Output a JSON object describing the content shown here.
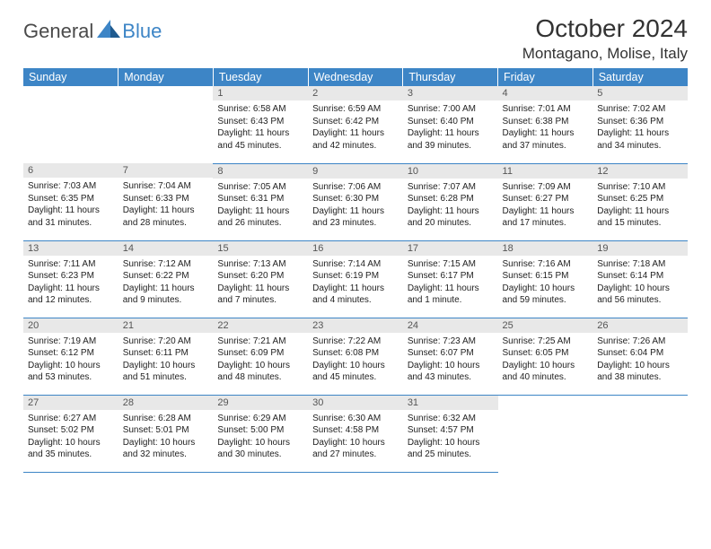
{
  "logo": {
    "text1": "General",
    "text2": "Blue"
  },
  "title": "October 2024",
  "location": "Montagano, Molise, Italy",
  "colors": {
    "header_bg": "#3d85c6",
    "header_fg": "#ffffff",
    "daynum_bg": "#e8e8e8",
    "daynum_fg": "#555555",
    "text": "#222222",
    "rule": "#3d85c6"
  },
  "weekdays": [
    "Sunday",
    "Monday",
    "Tuesday",
    "Wednesday",
    "Thursday",
    "Friday",
    "Saturday"
  ],
  "weeks": [
    [
      null,
      null,
      {
        "n": "1",
        "sr": "Sunrise: 6:58 AM",
        "ss": "Sunset: 6:43 PM",
        "d1": "Daylight: 11 hours",
        "d2": "and 45 minutes."
      },
      {
        "n": "2",
        "sr": "Sunrise: 6:59 AM",
        "ss": "Sunset: 6:42 PM",
        "d1": "Daylight: 11 hours",
        "d2": "and 42 minutes."
      },
      {
        "n": "3",
        "sr": "Sunrise: 7:00 AM",
        "ss": "Sunset: 6:40 PM",
        "d1": "Daylight: 11 hours",
        "d2": "and 39 minutes."
      },
      {
        "n": "4",
        "sr": "Sunrise: 7:01 AM",
        "ss": "Sunset: 6:38 PM",
        "d1": "Daylight: 11 hours",
        "d2": "and 37 minutes."
      },
      {
        "n": "5",
        "sr": "Sunrise: 7:02 AM",
        "ss": "Sunset: 6:36 PM",
        "d1": "Daylight: 11 hours",
        "d2": "and 34 minutes."
      }
    ],
    [
      {
        "n": "6",
        "sr": "Sunrise: 7:03 AM",
        "ss": "Sunset: 6:35 PM",
        "d1": "Daylight: 11 hours",
        "d2": "and 31 minutes."
      },
      {
        "n": "7",
        "sr": "Sunrise: 7:04 AM",
        "ss": "Sunset: 6:33 PM",
        "d1": "Daylight: 11 hours",
        "d2": "and 28 minutes."
      },
      {
        "n": "8",
        "sr": "Sunrise: 7:05 AM",
        "ss": "Sunset: 6:31 PM",
        "d1": "Daylight: 11 hours",
        "d2": "and 26 minutes."
      },
      {
        "n": "9",
        "sr": "Sunrise: 7:06 AM",
        "ss": "Sunset: 6:30 PM",
        "d1": "Daylight: 11 hours",
        "d2": "and 23 minutes."
      },
      {
        "n": "10",
        "sr": "Sunrise: 7:07 AM",
        "ss": "Sunset: 6:28 PM",
        "d1": "Daylight: 11 hours",
        "d2": "and 20 minutes."
      },
      {
        "n": "11",
        "sr": "Sunrise: 7:09 AM",
        "ss": "Sunset: 6:27 PM",
        "d1": "Daylight: 11 hours",
        "d2": "and 17 minutes."
      },
      {
        "n": "12",
        "sr": "Sunrise: 7:10 AM",
        "ss": "Sunset: 6:25 PM",
        "d1": "Daylight: 11 hours",
        "d2": "and 15 minutes."
      }
    ],
    [
      {
        "n": "13",
        "sr": "Sunrise: 7:11 AM",
        "ss": "Sunset: 6:23 PM",
        "d1": "Daylight: 11 hours",
        "d2": "and 12 minutes."
      },
      {
        "n": "14",
        "sr": "Sunrise: 7:12 AM",
        "ss": "Sunset: 6:22 PM",
        "d1": "Daylight: 11 hours",
        "d2": "and 9 minutes."
      },
      {
        "n": "15",
        "sr": "Sunrise: 7:13 AM",
        "ss": "Sunset: 6:20 PM",
        "d1": "Daylight: 11 hours",
        "d2": "and 7 minutes."
      },
      {
        "n": "16",
        "sr": "Sunrise: 7:14 AM",
        "ss": "Sunset: 6:19 PM",
        "d1": "Daylight: 11 hours",
        "d2": "and 4 minutes."
      },
      {
        "n": "17",
        "sr": "Sunrise: 7:15 AM",
        "ss": "Sunset: 6:17 PM",
        "d1": "Daylight: 11 hours",
        "d2": "and 1 minute."
      },
      {
        "n": "18",
        "sr": "Sunrise: 7:16 AM",
        "ss": "Sunset: 6:15 PM",
        "d1": "Daylight: 10 hours",
        "d2": "and 59 minutes."
      },
      {
        "n": "19",
        "sr": "Sunrise: 7:18 AM",
        "ss": "Sunset: 6:14 PM",
        "d1": "Daylight: 10 hours",
        "d2": "and 56 minutes."
      }
    ],
    [
      {
        "n": "20",
        "sr": "Sunrise: 7:19 AM",
        "ss": "Sunset: 6:12 PM",
        "d1": "Daylight: 10 hours",
        "d2": "and 53 minutes."
      },
      {
        "n": "21",
        "sr": "Sunrise: 7:20 AM",
        "ss": "Sunset: 6:11 PM",
        "d1": "Daylight: 10 hours",
        "d2": "and 51 minutes."
      },
      {
        "n": "22",
        "sr": "Sunrise: 7:21 AM",
        "ss": "Sunset: 6:09 PM",
        "d1": "Daylight: 10 hours",
        "d2": "and 48 minutes."
      },
      {
        "n": "23",
        "sr": "Sunrise: 7:22 AM",
        "ss": "Sunset: 6:08 PM",
        "d1": "Daylight: 10 hours",
        "d2": "and 45 minutes."
      },
      {
        "n": "24",
        "sr": "Sunrise: 7:23 AM",
        "ss": "Sunset: 6:07 PM",
        "d1": "Daylight: 10 hours",
        "d2": "and 43 minutes."
      },
      {
        "n": "25",
        "sr": "Sunrise: 7:25 AM",
        "ss": "Sunset: 6:05 PM",
        "d1": "Daylight: 10 hours",
        "d2": "and 40 minutes."
      },
      {
        "n": "26",
        "sr": "Sunrise: 7:26 AM",
        "ss": "Sunset: 6:04 PM",
        "d1": "Daylight: 10 hours",
        "d2": "and 38 minutes."
      }
    ],
    [
      {
        "n": "27",
        "sr": "Sunrise: 6:27 AM",
        "ss": "Sunset: 5:02 PM",
        "d1": "Daylight: 10 hours",
        "d2": "and 35 minutes."
      },
      {
        "n": "28",
        "sr": "Sunrise: 6:28 AM",
        "ss": "Sunset: 5:01 PM",
        "d1": "Daylight: 10 hours",
        "d2": "and 32 minutes."
      },
      {
        "n": "29",
        "sr": "Sunrise: 6:29 AM",
        "ss": "Sunset: 5:00 PM",
        "d1": "Daylight: 10 hours",
        "d2": "and 30 minutes."
      },
      {
        "n": "30",
        "sr": "Sunrise: 6:30 AM",
        "ss": "Sunset: 4:58 PM",
        "d1": "Daylight: 10 hours",
        "d2": "and 27 minutes."
      },
      {
        "n": "31",
        "sr": "Sunrise: 6:32 AM",
        "ss": "Sunset: 4:57 PM",
        "d1": "Daylight: 10 hours",
        "d2": "and 25 minutes."
      },
      null,
      null
    ]
  ]
}
